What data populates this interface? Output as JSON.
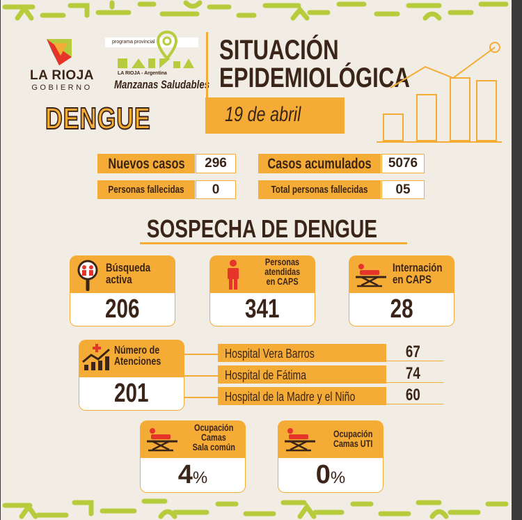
{
  "branding": {
    "gov_name_line1": "LA RIOJA",
    "gov_name_line2": "GOBIERNO",
    "program_tag": "programa provincial",
    "program_country": "LA RIOJA - Argentina",
    "program_name": "Manzanas Saludables",
    "disease": "DENGUE"
  },
  "header": {
    "title_line1": "SITUACIÓN",
    "title_line2": "EPIDEMIOLÓGICA",
    "date": "19 de abril"
  },
  "stats": {
    "nuevos_casos": {
      "label": "Nuevos casos",
      "value": "296"
    },
    "casos_acumulados": {
      "label": "Casos acumulados",
      "value": "5076"
    },
    "personas_fallecidas": {
      "label": "Personas fallecidas",
      "value": "0"
    },
    "total_fallecidas": {
      "label": "Total personas fallecidas",
      "value": "05"
    }
  },
  "sospecha": {
    "title": "SOSPECHA DE DENGUE",
    "busqueda": {
      "line1": "Búsqueda",
      "line2": "activa",
      "value": "206"
    },
    "atendidas": {
      "line1": "Personas",
      "line2": "atendidas",
      "line3": "en CAPS",
      "value": "341"
    },
    "internacion": {
      "line1": "Internación",
      "line2": "en CAPS",
      "value": "28"
    },
    "atenciones": {
      "line1": "Número de",
      "line2": "Atenciones",
      "value": "201"
    },
    "hospitales": [
      {
        "name": "Hospital Vera Barros",
        "value": "67"
      },
      {
        "name": "Hospital de Fátima",
        "value": "74"
      },
      {
        "name": "Hospital de la Madre y el Niño",
        "value": "60"
      }
    ],
    "sala_comun": {
      "line1": "Ocupación",
      "line2": "Camas",
      "line3": "Sala común",
      "value": "4",
      "unit": "%"
    },
    "uti": {
      "line1": "Ocupación",
      "line2": "Camas UTI",
      "value": "0",
      "unit": "%"
    }
  },
  "colors": {
    "accent": "#f5ac36",
    "text": "#3b2418",
    "background": "#f1ece4",
    "green": "#b7cc3c",
    "red": "#e5342a"
  },
  "icons": [
    "search-people-icon",
    "person-icon",
    "stretcher-icon",
    "chart-cross-icon",
    "location-pin-icon",
    "bar-chart-trend-icon"
  ]
}
